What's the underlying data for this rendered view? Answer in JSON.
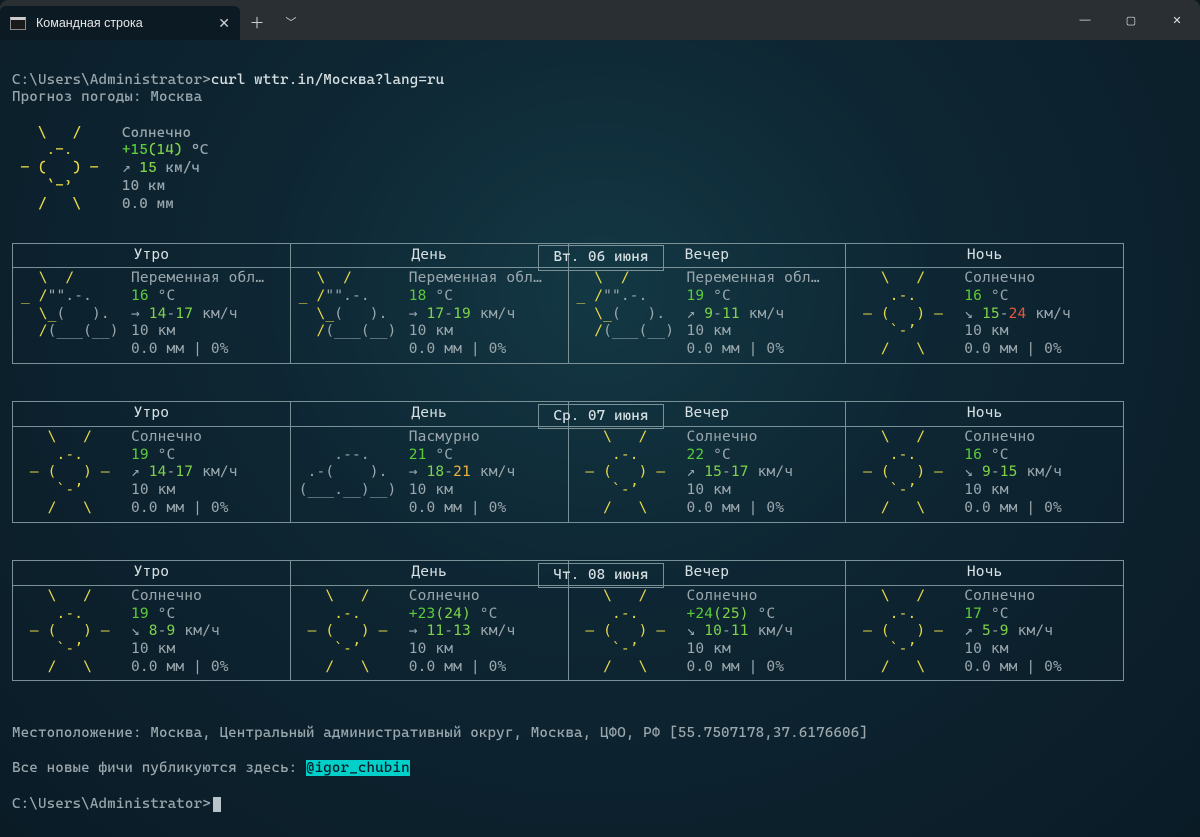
{
  "window": {
    "tab_title": "Командная строка",
    "icon_glyph": "C:\\"
  },
  "colors": {
    "bg_gradient_center": "#133844",
    "bg_gradient_mid": "#0e2633",
    "bg_gradient_edge": "#0a1b26",
    "titlebar": "#2a2f34",
    "text": "#b8c4c9",
    "border": "#789096",
    "yellow": "#e7d947",
    "green": "#7fd34a",
    "cyan": "#00d0c9",
    "orange": "#f0b23c",
    "red": "#e4573c",
    "highlight_bg": "#00d0c9"
  },
  "terminal": {
    "prompt": "C:\\Users\\Administrator>",
    "command": "curl wttr.in/Москва?lang=ru",
    "header": "Прогноз погоды: Москва",
    "current": {
      "condition": "Солнечно",
      "temp": "+15",
      "temp_feels": "(14)",
      "temp_unit": " °C",
      "wind_arrow": "↗",
      "wind": " 15",
      "wind_unit": " км/ч",
      "vis": "10 км",
      "precip": "0.0 мм",
      "art": [
        "   \\   /   ",
        "    .-.    ",
        " ― (   ) ― ",
        "    `-’    ",
        "   /   \\   "
      ]
    },
    "period_labels": [
      "Утро",
      "День",
      "Вечер",
      "Ночь"
    ],
    "art": {
      "sunny": [
        "   \\   /   ",
        "    .-.    ",
        " ― (   ) ― ",
        "    `-’    ",
        "   /   \\   "
      ],
      "partly": [
        "  \\  /     ",
        "_ /\"\".-.   ",
        "  \\_(   ). ",
        "  /(___(__)",
        "           "
      ],
      "overcast": [
        "           ",
        "    .--.   ",
        " .-(    ). ",
        "(___.__)__)",
        "           "
      ]
    },
    "days": [
      {
        "date": "Вт. 06 июня",
        "cells": [
          {
            "art": "partly",
            "cond": "Переменная обл…",
            "temp": "16",
            "temp_unit": " °C",
            "wa": "→ ",
            "w1": "14",
            "dash": "-",
            "w2": "17",
            "wu": " км/ч",
            "vis": "10 км",
            "pr": "0.0 мм | 0%"
          },
          {
            "art": "partly",
            "cond": "Переменная обл…",
            "temp": "18",
            "temp_unit": " °C",
            "wa": "→ ",
            "w1": "17",
            "dash": "-",
            "w2": "19",
            "wu": " км/ч",
            "vis": "10 км",
            "pr": "0.0 мм | 0%"
          },
          {
            "art": "partly",
            "cond": "Переменная обл…",
            "temp": "19",
            "temp_unit": " °C",
            "wa": "↗ ",
            "w1": "9",
            "dash": "-",
            "w2": "11",
            "wu": " км/ч",
            "vis": "10 км",
            "pr": "0.0 мм | 0%"
          },
          {
            "art": "sunny",
            "cond": "Солнечно",
            "temp": "16",
            "temp_unit": " °C",
            "wa": "↘ ",
            "w1": "15",
            "dash": "-",
            "w2": "24",
            "w2_color": "red",
            "wu": " км/ч",
            "vis": "10 км",
            "pr": "0.0 мм | 0%"
          }
        ]
      },
      {
        "date": "Ср. 07 июня",
        "cells": [
          {
            "art": "sunny",
            "cond": "Солнечно",
            "temp": "19",
            "temp_unit": " °C",
            "wa": "↗ ",
            "w1": "14",
            "dash": "-",
            "w2": "17",
            "wu": " км/ч",
            "vis": "10 км",
            "pr": "0.0 мм | 0%"
          },
          {
            "art": "overcast",
            "art_gray": true,
            "cond": "Пасмурно",
            "temp": "21",
            "temp_unit": " °C",
            "wa": "→ ",
            "w1": "18",
            "dash": "-",
            "w2": "21",
            "w2_color": "orange",
            "wu": " км/ч",
            "vis": "10 км",
            "pr": "0.0 мм | 0%"
          },
          {
            "art": "sunny",
            "cond": "Солнечно",
            "temp": "22",
            "temp_unit": " °C",
            "wa": "↗ ",
            "w1": "15",
            "dash": "-",
            "w2": "17",
            "wu": " км/ч",
            "vis": "10 км",
            "pr": "0.0 мм | 0%"
          },
          {
            "art": "sunny",
            "cond": "Солнечно",
            "temp": "16",
            "temp_unit": " °C",
            "wa": "↘ ",
            "w1": "9",
            "dash": "-",
            "w2": "15",
            "wu": " км/ч",
            "vis": "10 км",
            "pr": "0.0 мм | 0%"
          }
        ]
      },
      {
        "date": "Чт. 08 июня",
        "cells": [
          {
            "art": "sunny",
            "cond": "Солнечно",
            "temp": "19",
            "temp_unit": " °C",
            "wa": "↘ ",
            "w1": "8",
            "dash": "-",
            "w2": "9",
            "wu": " км/ч",
            "vis": "10 км",
            "pr": "0.0 мм | 0%"
          },
          {
            "art": "sunny",
            "cond": "Солнечно",
            "temp": "+23",
            "temp_feels": "(24)",
            "temp_unit": " °C",
            "wa": "→ ",
            "w1": "11",
            "dash": "-",
            "w2": "13",
            "wu": " км/ч",
            "vis": "10 км",
            "pr": "0.0 мм | 0%"
          },
          {
            "art": "sunny",
            "cond": "Солнечно",
            "temp": "+24",
            "temp_feels": "(25)",
            "temp_unit": " °C",
            "wa": "↘ ",
            "w1": "10",
            "dash": "-",
            "w2": "11",
            "wu": " км/ч",
            "vis": "10 км",
            "pr": "0.0 мм | 0%"
          },
          {
            "art": "sunny",
            "cond": "Солнечно",
            "temp": "17",
            "temp_unit": " °C",
            "wa": "↗ ",
            "w1": "5",
            "dash": "-",
            "w2": "9",
            "wu": " км/ч",
            "vis": "10 км",
            "pr": "0.0 мм | 0%"
          }
        ]
      }
    ],
    "location_line": "Местоположение: Москва, Центральный административный округ, Москва, ЦФО, РФ [55.7507178,37.6176606]",
    "footer_prefix": "Все новые фичи публикуются здесь: ",
    "footer_handle": "@igor_chubin",
    "prompt2": "C:\\Users\\Administrator>"
  }
}
